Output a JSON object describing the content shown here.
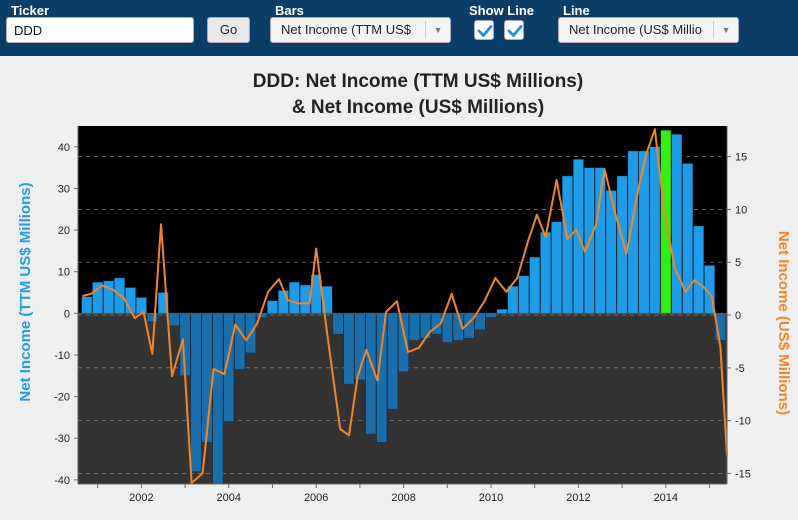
{
  "toolbar": {
    "ticker_label": "Ticker",
    "ticker_value": "DDD",
    "go_label": "Go",
    "bars_label": "Bars",
    "bars_value": "Net Income (TTM US$ Millions)",
    "show_line_label": "Show Line",
    "show_line_checked": true,
    "show_line_checked2": true,
    "line_label": "Line",
    "line_value": "Net Income (US$ Millions)"
  },
  "colors": {
    "toolbar_bg": "#0c3d66",
    "bar_positive": "#1f9ce8",
    "bar_negative": "#1a6eaa",
    "bar_highlight": "#33ee11",
    "line": "#f0862a",
    "plot_bg_top": "#000000",
    "plot_bg_bottom": "#333333"
  },
  "chart_data": {
    "type": "bar",
    "title": [
      "DDD: Net Income (TTM US$ Millions)",
      "& Net Income (US$ Millions)"
    ],
    "ylabel": "Net Income (TTM US$ Millions)",
    "y2label": "Net Income (US$ Millions)",
    "xlim": [
      2000.55,
      2015.4
    ],
    "ylim": [
      -41,
      45
    ],
    "y2lim": [
      -16,
      17.9
    ],
    "x_ticks": [
      2002,
      2004,
      2006,
      2008,
      2010,
      2012,
      2014
    ],
    "y_ticks": [
      40,
      30,
      20,
      10,
      0,
      -10,
      -20,
      -30,
      -40
    ],
    "y2_ticks": [
      15,
      10,
      5,
      0,
      -5,
      -10,
      -15
    ],
    "grid": true,
    "highlight_x": 2014.0,
    "bars": {
      "name": "Net Income (TTM US$ Millions)",
      "x": [
        2000.75,
        2001.0,
        2001.25,
        2001.5,
        2001.75,
        2002.0,
        2002.25,
        2002.5,
        2002.75,
        2003.0,
        2003.25,
        2003.5,
        2003.75,
        2004.0,
        2004.25,
        2004.5,
        2004.75,
        2005.0,
        2005.25,
        2005.5,
        2005.75,
        2006.0,
        2006.25,
        2006.5,
        2006.75,
        2007.0,
        2007.25,
        2007.5,
        2007.75,
        2008.0,
        2008.25,
        2008.5,
        2008.75,
        2009.0,
        2009.25,
        2009.5,
        2009.75,
        2010.0,
        2010.25,
        2010.5,
        2010.75,
        2011.0,
        2011.25,
        2011.5,
        2011.75,
        2012.0,
        2012.25,
        2012.5,
        2012.75,
        2013.0,
        2013.25,
        2013.5,
        2013.75,
        2014.0,
        2014.25,
        2014.5,
        2014.75,
        2015.0,
        2015.25
      ],
      "values": [
        4,
        7.5,
        7.8,
        8.5,
        6.2,
        3.8,
        -2,
        5,
        -3,
        -15,
        -38,
        -31,
        -41,
        -26,
        -13.5,
        -9.5,
        -1,
        3,
        5.5,
        7.5,
        6.8,
        9.3,
        6.5,
        -5,
        -17,
        -16,
        -29,
        -31,
        -23,
        -14,
        -6.5,
        -6,
        -5,
        -7,
        -6.5,
        -6,
        -4,
        -1,
        1,
        6.5,
        9,
        13.5,
        19.5,
        22,
        33,
        37,
        35,
        35,
        29.5,
        33,
        39,
        39,
        40,
        44,
        43,
        36,
        21,
        11.5,
        -6.5
      ]
    },
    "line": {
      "name": "Net Income (US$ Millions)",
      "x": [
        2000.65,
        2000.85,
        2001.1,
        2001.35,
        2001.6,
        2001.85,
        2002.05,
        2002.25,
        2002.45,
        2002.7,
        2002.95,
        2003.15,
        2003.4,
        2003.65,
        2003.9,
        2004.15,
        2004.4,
        2004.65,
        2004.9,
        2005.15,
        2005.35,
        2005.6,
        2005.85,
        2006.0,
        2006.25,
        2006.55,
        2006.75,
        2006.95,
        2007.15,
        2007.4,
        2007.6,
        2007.85,
        2008.1,
        2008.35,
        2008.6,
        2008.85,
        2009.1,
        2009.35,
        2009.6,
        2009.85,
        2010.1,
        2010.35,
        2010.6,
        2010.85,
        2011.05,
        2011.25,
        2011.5,
        2011.75,
        2011.95,
        2012.15,
        2012.4,
        2012.6,
        2012.85,
        2013.1,
        2013.35,
        2013.55,
        2013.75,
        2013.95,
        2014.2,
        2014.45,
        2014.65,
        2014.85,
        2015.05,
        2015.25,
        2015.4
      ],
      "values": [
        1.8,
        2.0,
        2.8,
        2.4,
        1.6,
        -0.3,
        0.3,
        -3.7,
        8.6,
        -5.8,
        -2.3,
        -15.9,
        -15.0,
        -5.1,
        -5.6,
        -0.9,
        -2.4,
        -0.8,
        2.2,
        3.4,
        1.4,
        1.1,
        1.1,
        6.3,
        -1.7,
        -10.8,
        -11.4,
        -5.8,
        -3.3,
        -6.2,
        0.3,
        1.3,
        -3.5,
        -3.1,
        -1.6,
        -0.8,
        2.0,
        -1.3,
        -0.3,
        1.3,
        3.5,
        2.2,
        3.5,
        7.0,
        9.5,
        7.4,
        12.8,
        7.2,
        8.1,
        6.0,
        8.5,
        13.8,
        9.5,
        5.8,
        11.5,
        15.2,
        17.6,
        10.2,
        4.5,
        2.2,
        3.3,
        2.7,
        1.8,
        -3.0,
        -13.3
      ]
    }
  }
}
